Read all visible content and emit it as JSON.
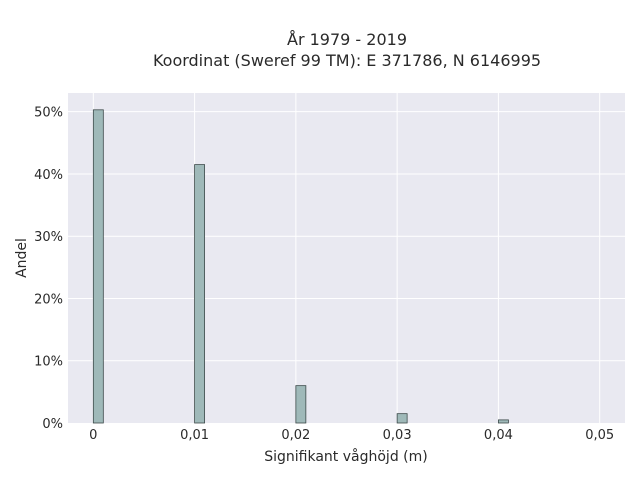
{
  "chart_data": {
    "type": "bar",
    "title_line1": "År 1979 - 2019",
    "title_line2": "Koordinat (Sweref 99 TM): E 371786, N 6146995",
    "xlabel": "Signifikant våghöjd (m)",
    "ylabel": "Andel",
    "x": [
      0,
      0.01,
      0.02,
      0.03,
      0.04
    ],
    "values": [
      0.503,
      0.415,
      0.06,
      0.015,
      0.005
    ],
    "xlim": [
      -0.0025,
      0.0525
    ],
    "ylim": [
      0,
      0.53
    ],
    "x_ticks": [
      {
        "value": 0,
        "label": "0"
      },
      {
        "value": 0.01,
        "label": "0,01"
      },
      {
        "value": 0.02,
        "label": "0,02"
      },
      {
        "value": 0.03,
        "label": "0,03"
      },
      {
        "value": 0.04,
        "label": "0,04"
      },
      {
        "value": 0.05,
        "label": "0,05"
      }
    ],
    "y_ticks": [
      {
        "value": 0,
        "label": "0%"
      },
      {
        "value": 0.1,
        "label": "10%"
      },
      {
        "value": 0.2,
        "label": "20%"
      },
      {
        "value": 0.3,
        "label": "30%"
      },
      {
        "value": 0.4,
        "label": "40%"
      },
      {
        "value": 0.5,
        "label": "50%"
      }
    ],
    "grid": true,
    "bar_color": "#9fb9b9",
    "bar_edge_color": "#3c4a4a",
    "plot_bg": "#e9e9f1",
    "grid_color": "#ffffff"
  }
}
